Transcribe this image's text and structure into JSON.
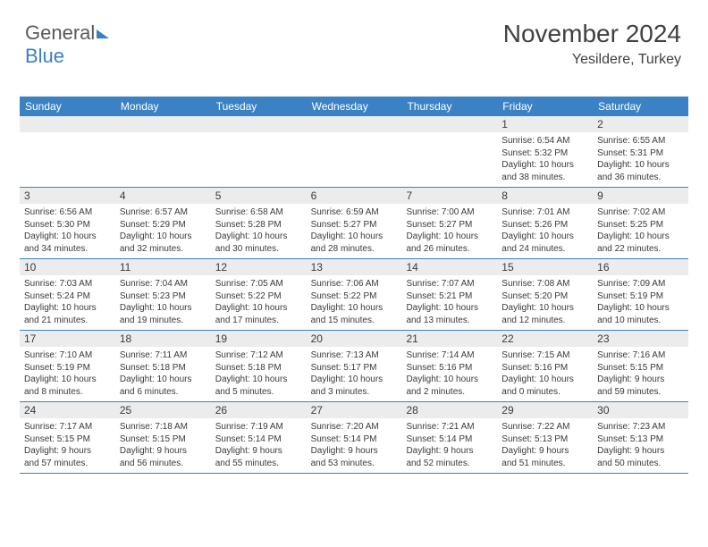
{
  "logo": {
    "text1": "General",
    "text2": "Blue"
  },
  "header": {
    "month_title": "November 2024",
    "location": "Yesildere, Turkey"
  },
  "dow": [
    "Sunday",
    "Monday",
    "Tuesday",
    "Wednesday",
    "Thursday",
    "Friday",
    "Saturday"
  ],
  "colors": {
    "header_bar": "#3a82c4",
    "daynum_bg": "#ececec",
    "text": "#3a3a3a",
    "logo_gray": "#5a5a5a",
    "logo_blue": "#3a7fc4"
  },
  "weeks": [
    [
      {
        "empty": true
      },
      {
        "empty": true
      },
      {
        "empty": true
      },
      {
        "empty": true
      },
      {
        "empty": true
      },
      {
        "num": "1",
        "sunrise": "Sunrise: 6:54 AM",
        "sunset": "Sunset: 5:32 PM",
        "daylight1": "Daylight: 10 hours",
        "daylight2": "and 38 minutes."
      },
      {
        "num": "2",
        "sunrise": "Sunrise: 6:55 AM",
        "sunset": "Sunset: 5:31 PM",
        "daylight1": "Daylight: 10 hours",
        "daylight2": "and 36 minutes."
      }
    ],
    [
      {
        "num": "3",
        "sunrise": "Sunrise: 6:56 AM",
        "sunset": "Sunset: 5:30 PM",
        "daylight1": "Daylight: 10 hours",
        "daylight2": "and 34 minutes."
      },
      {
        "num": "4",
        "sunrise": "Sunrise: 6:57 AM",
        "sunset": "Sunset: 5:29 PM",
        "daylight1": "Daylight: 10 hours",
        "daylight2": "and 32 minutes."
      },
      {
        "num": "5",
        "sunrise": "Sunrise: 6:58 AM",
        "sunset": "Sunset: 5:28 PM",
        "daylight1": "Daylight: 10 hours",
        "daylight2": "and 30 minutes."
      },
      {
        "num": "6",
        "sunrise": "Sunrise: 6:59 AM",
        "sunset": "Sunset: 5:27 PM",
        "daylight1": "Daylight: 10 hours",
        "daylight2": "and 28 minutes."
      },
      {
        "num": "7",
        "sunrise": "Sunrise: 7:00 AM",
        "sunset": "Sunset: 5:27 PM",
        "daylight1": "Daylight: 10 hours",
        "daylight2": "and 26 minutes."
      },
      {
        "num": "8",
        "sunrise": "Sunrise: 7:01 AM",
        "sunset": "Sunset: 5:26 PM",
        "daylight1": "Daylight: 10 hours",
        "daylight2": "and 24 minutes."
      },
      {
        "num": "9",
        "sunrise": "Sunrise: 7:02 AM",
        "sunset": "Sunset: 5:25 PM",
        "daylight1": "Daylight: 10 hours",
        "daylight2": "and 22 minutes."
      }
    ],
    [
      {
        "num": "10",
        "sunrise": "Sunrise: 7:03 AM",
        "sunset": "Sunset: 5:24 PM",
        "daylight1": "Daylight: 10 hours",
        "daylight2": "and 21 minutes."
      },
      {
        "num": "11",
        "sunrise": "Sunrise: 7:04 AM",
        "sunset": "Sunset: 5:23 PM",
        "daylight1": "Daylight: 10 hours",
        "daylight2": "and 19 minutes."
      },
      {
        "num": "12",
        "sunrise": "Sunrise: 7:05 AM",
        "sunset": "Sunset: 5:22 PM",
        "daylight1": "Daylight: 10 hours",
        "daylight2": "and 17 minutes."
      },
      {
        "num": "13",
        "sunrise": "Sunrise: 7:06 AM",
        "sunset": "Sunset: 5:22 PM",
        "daylight1": "Daylight: 10 hours",
        "daylight2": "and 15 minutes."
      },
      {
        "num": "14",
        "sunrise": "Sunrise: 7:07 AM",
        "sunset": "Sunset: 5:21 PM",
        "daylight1": "Daylight: 10 hours",
        "daylight2": "and 13 minutes."
      },
      {
        "num": "15",
        "sunrise": "Sunrise: 7:08 AM",
        "sunset": "Sunset: 5:20 PM",
        "daylight1": "Daylight: 10 hours",
        "daylight2": "and 12 minutes."
      },
      {
        "num": "16",
        "sunrise": "Sunrise: 7:09 AM",
        "sunset": "Sunset: 5:19 PM",
        "daylight1": "Daylight: 10 hours",
        "daylight2": "and 10 minutes."
      }
    ],
    [
      {
        "num": "17",
        "sunrise": "Sunrise: 7:10 AM",
        "sunset": "Sunset: 5:19 PM",
        "daylight1": "Daylight: 10 hours",
        "daylight2": "and 8 minutes."
      },
      {
        "num": "18",
        "sunrise": "Sunrise: 7:11 AM",
        "sunset": "Sunset: 5:18 PM",
        "daylight1": "Daylight: 10 hours",
        "daylight2": "and 6 minutes."
      },
      {
        "num": "19",
        "sunrise": "Sunrise: 7:12 AM",
        "sunset": "Sunset: 5:18 PM",
        "daylight1": "Daylight: 10 hours",
        "daylight2": "and 5 minutes."
      },
      {
        "num": "20",
        "sunrise": "Sunrise: 7:13 AM",
        "sunset": "Sunset: 5:17 PM",
        "daylight1": "Daylight: 10 hours",
        "daylight2": "and 3 minutes."
      },
      {
        "num": "21",
        "sunrise": "Sunrise: 7:14 AM",
        "sunset": "Sunset: 5:16 PM",
        "daylight1": "Daylight: 10 hours",
        "daylight2": "and 2 minutes."
      },
      {
        "num": "22",
        "sunrise": "Sunrise: 7:15 AM",
        "sunset": "Sunset: 5:16 PM",
        "daylight1": "Daylight: 10 hours",
        "daylight2": "and 0 minutes."
      },
      {
        "num": "23",
        "sunrise": "Sunrise: 7:16 AM",
        "sunset": "Sunset: 5:15 PM",
        "daylight1": "Daylight: 9 hours",
        "daylight2": "and 59 minutes."
      }
    ],
    [
      {
        "num": "24",
        "sunrise": "Sunrise: 7:17 AM",
        "sunset": "Sunset: 5:15 PM",
        "daylight1": "Daylight: 9 hours",
        "daylight2": "and 57 minutes."
      },
      {
        "num": "25",
        "sunrise": "Sunrise: 7:18 AM",
        "sunset": "Sunset: 5:15 PM",
        "daylight1": "Daylight: 9 hours",
        "daylight2": "and 56 minutes."
      },
      {
        "num": "26",
        "sunrise": "Sunrise: 7:19 AM",
        "sunset": "Sunset: 5:14 PM",
        "daylight1": "Daylight: 9 hours",
        "daylight2": "and 55 minutes."
      },
      {
        "num": "27",
        "sunrise": "Sunrise: 7:20 AM",
        "sunset": "Sunset: 5:14 PM",
        "daylight1": "Daylight: 9 hours",
        "daylight2": "and 53 minutes."
      },
      {
        "num": "28",
        "sunrise": "Sunrise: 7:21 AM",
        "sunset": "Sunset: 5:14 PM",
        "daylight1": "Daylight: 9 hours",
        "daylight2": "and 52 minutes."
      },
      {
        "num": "29",
        "sunrise": "Sunrise: 7:22 AM",
        "sunset": "Sunset: 5:13 PM",
        "daylight1": "Daylight: 9 hours",
        "daylight2": "and 51 minutes."
      },
      {
        "num": "30",
        "sunrise": "Sunrise: 7:23 AM",
        "sunset": "Sunset: 5:13 PM",
        "daylight1": "Daylight: 9 hours",
        "daylight2": "and 50 minutes."
      }
    ]
  ]
}
